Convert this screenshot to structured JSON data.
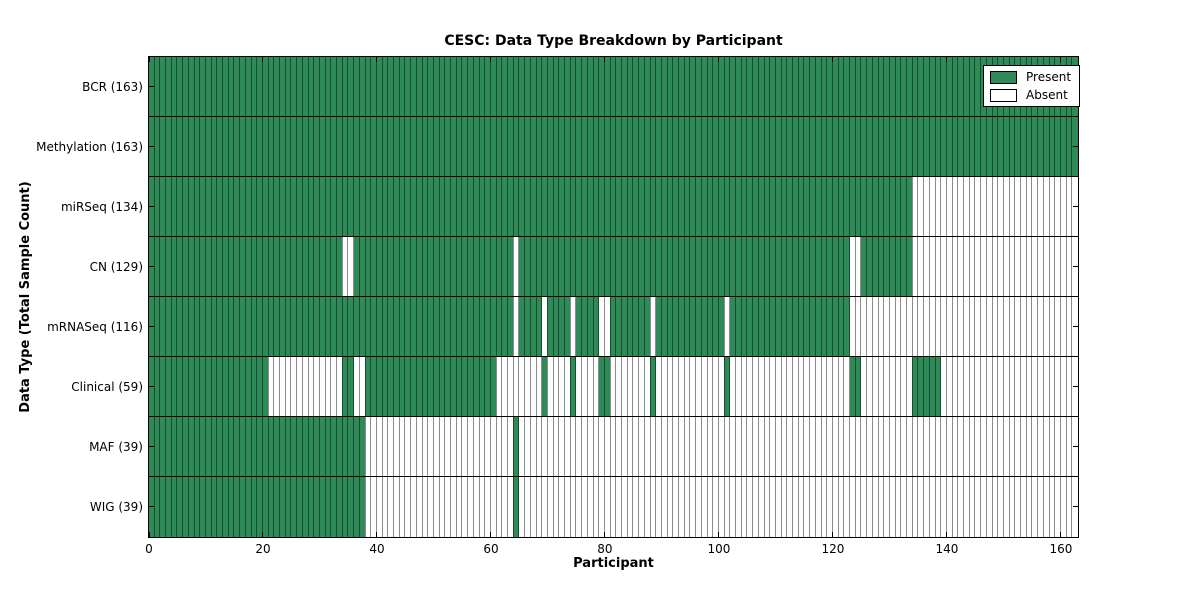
{
  "title": "CESC: Data Type Breakdown by Participant",
  "axes": {
    "xlabel": "Participant",
    "ylabel": "Data Type (Total Sample Count)",
    "x_ticks": [
      0,
      20,
      40,
      60,
      80,
      100,
      120,
      140,
      160
    ],
    "x_range": [
      0,
      163
    ]
  },
  "legend": {
    "items": [
      {
        "label": "Present",
        "color": "#2e8b57"
      },
      {
        "label": "Absent",
        "color": "#ffffff"
      }
    ]
  },
  "colors": {
    "present": "#2e8b57",
    "absent": "#ffffff",
    "cell_line": "rgba(0,0,0,0.45)",
    "spine": "#000000"
  },
  "chart_data": {
    "type": "heatmap",
    "title": "CESC: Data Type Breakdown by Participant",
    "xlabel": "Participant",
    "ylabel": "Data Type (Total Sample Count)",
    "x_range": [
      0,
      163
    ],
    "n_participants": 163,
    "legend": [
      "Present",
      "Absent"
    ],
    "legend_position": "upper right",
    "rows": [
      {
        "name": "BCR",
        "count": 163,
        "label": "BCR (163)",
        "present_ranges": [
          [
            0,
            163
          ]
        ]
      },
      {
        "name": "Methylation",
        "count": 163,
        "label": "Methylation (163)",
        "present_ranges": [
          [
            0,
            163
          ]
        ]
      },
      {
        "name": "miRSeq",
        "count": 134,
        "label": "miRSeq (134)",
        "present_ranges": [
          [
            0,
            134
          ]
        ]
      },
      {
        "name": "CN",
        "count": 129,
        "label": "CN (129)",
        "present_ranges": [
          [
            0,
            34
          ],
          [
            36,
            64
          ],
          [
            65,
            123
          ],
          [
            125,
            134
          ]
        ]
      },
      {
        "name": "mRNASeq",
        "count": 116,
        "label": "mRNASeq (116)",
        "present_ranges": [
          [
            0,
            64
          ],
          [
            65,
            69
          ],
          [
            70,
            74
          ],
          [
            75,
            79
          ],
          [
            81,
            88
          ],
          [
            89,
            101
          ],
          [
            102,
            123
          ]
        ]
      },
      {
        "name": "Clinical",
        "count": 59,
        "label": "Clinical (59)",
        "present_ranges": [
          [
            0,
            21
          ],
          [
            34,
            36
          ],
          [
            38,
            61
          ],
          [
            69,
            70
          ],
          [
            74,
            75
          ],
          [
            79,
            81
          ],
          [
            88,
            89
          ],
          [
            101,
            102
          ],
          [
            123,
            125
          ],
          [
            134,
            139
          ]
        ]
      },
      {
        "name": "MAF",
        "count": 39,
        "label": "MAF (39)",
        "present_ranges": [
          [
            0,
            38
          ],
          [
            64,
            65
          ]
        ]
      },
      {
        "name": "WIG",
        "count": 39,
        "label": "WIG (39)",
        "present_ranges": [
          [
            0,
            38
          ],
          [
            64,
            65
          ]
        ]
      }
    ]
  }
}
